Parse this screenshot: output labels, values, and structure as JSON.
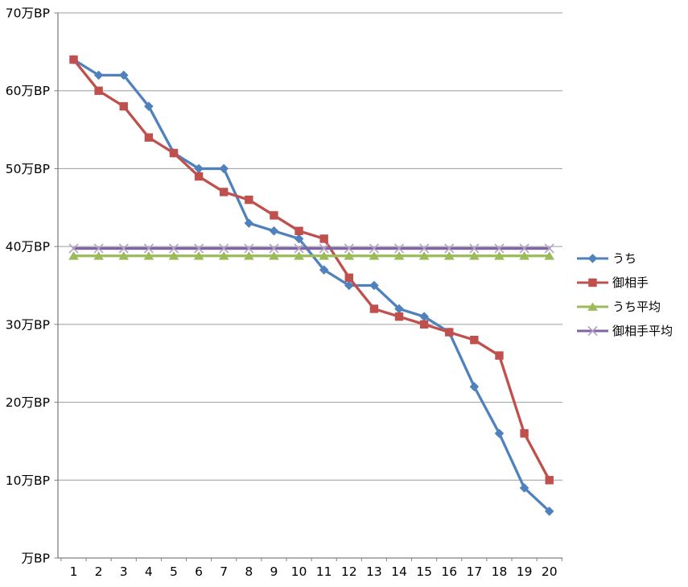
{
  "chart_data": {
    "type": "line",
    "title": "",
    "xlabel": "",
    "ylabel": "",
    "unit": "万BP",
    "grid": true,
    "legend_position": "right",
    "x": [
      "1",
      "2",
      "3",
      "4",
      "5",
      "6",
      "7",
      "8",
      "9",
      "10",
      "11",
      "12",
      "13",
      "14",
      "15",
      "16",
      "17",
      "18",
      "19",
      "20"
    ],
    "y_axis": {
      "min": 0,
      "max": 70,
      "ticks": [
        {
          "value": 70,
          "label": "70万BP"
        },
        {
          "value": 60,
          "label": "60万BP"
        },
        {
          "value": 50,
          "label": "50万BP"
        },
        {
          "value": 40,
          "label": "40万BP"
        },
        {
          "value": 30,
          "label": "30万BP"
        },
        {
          "value": 20,
          "label": "20万BP"
        },
        {
          "value": 10,
          "label": "10万BP"
        },
        {
          "value": 0,
          "label": "万BP"
        }
      ]
    },
    "series": [
      {
        "name": "うち",
        "color": "#4F81BD",
        "marker": "diamond",
        "values": [
          64,
          62,
          62,
          58,
          52,
          50,
          50,
          43,
          42,
          41,
          37,
          35,
          35,
          32,
          31,
          29,
          22,
          16,
          9,
          6
        ]
      },
      {
        "name": "御相手",
        "color": "#C0504D",
        "marker": "square",
        "values": [
          64,
          60,
          58,
          54,
          52,
          49,
          47,
          46,
          44,
          42,
          41,
          36,
          32,
          31,
          30,
          29,
          28,
          26,
          16,
          10
        ]
      },
      {
        "name": "うち平均",
        "color": "#9BBB59",
        "marker": "triangle",
        "values": [
          38.8,
          38.8,
          38.8,
          38.8,
          38.8,
          38.8,
          38.8,
          38.8,
          38.8,
          38.8,
          38.8,
          38.8,
          38.8,
          38.8,
          38.8,
          38.8,
          38.8,
          38.8,
          38.8,
          38.8
        ]
      },
      {
        "name": "御相手平均",
        "color": "#8064A2",
        "marker": "x",
        "marker_color": "#B2A1C7",
        "values": [
          39.75,
          39.75,
          39.75,
          39.75,
          39.75,
          39.75,
          39.75,
          39.75,
          39.75,
          39.75,
          39.75,
          39.75,
          39.75,
          39.75,
          39.75,
          39.75,
          39.75,
          39.75,
          39.75,
          39.75
        ]
      }
    ]
  },
  "colors": {
    "background": "#FFFFFF",
    "gridline": "#9C9C9C",
    "axis": "#808080",
    "text": "#000000"
  }
}
